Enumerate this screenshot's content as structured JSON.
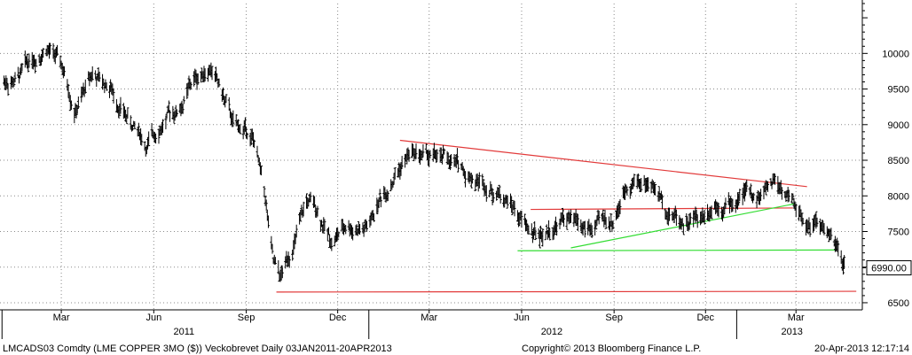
{
  "chart_data": {
    "type": "bar",
    "subtype": "ohlc",
    "ylim": [
      6400,
      10700
    ],
    "x_range": [
      "2011-01-03",
      "2013-04-20"
    ],
    "y_ticks": [
      6500,
      7000,
      7500,
      8000,
      8500,
      9000,
      9500,
      10000
    ],
    "y_tick_labels": [
      "6500",
      "7000",
      "7500",
      "8000",
      "8500",
      "9000",
      "9500",
      "10000"
    ],
    "x_month_ticks": [
      {
        "date": "2011-03-01",
        "label": "Mar"
      },
      {
        "date": "2011-06-01",
        "label": "Jun"
      },
      {
        "date": "2011-09-01",
        "label": "Sep"
      },
      {
        "date": "2011-12-01",
        "label": "Dec"
      },
      {
        "date": "2012-03-01",
        "label": "Mar"
      },
      {
        "date": "2012-06-01",
        "label": "Jun"
      },
      {
        "date": "2012-09-01",
        "label": "Sep"
      },
      {
        "date": "2012-12-01",
        "label": "Dec"
      },
      {
        "date": "2013-03-01",
        "label": "Mar"
      }
    ],
    "x_year_ticks": [
      {
        "date": "2011-01-01",
        "label": "2011",
        "center_date": "2011-07-01"
      },
      {
        "date": "2012-01-01",
        "label": "2012",
        "center_date": "2012-07-01"
      },
      {
        "date": "2013-01-01",
        "label": "2013",
        "center_date": "2013-02-25"
      }
    ],
    "last_price": 6990.0,
    "last_price_label": "6990.00",
    "grid": true,
    "price_keypoints": [
      [
        "2011-01-03",
        9600
      ],
      [
        "2011-01-20",
        9700
      ],
      [
        "2011-02-05",
        10000
      ],
      [
        "2011-02-14",
        10150
      ],
      [
        "2011-03-01",
        9800
      ],
      [
        "2011-03-15",
        9250
      ],
      [
        "2011-04-01",
        9700
      ],
      [
        "2011-04-20",
        9500
      ],
      [
        "2011-05-10",
        9000
      ],
      [
        "2011-05-25",
        8700
      ],
      [
        "2011-06-10",
        9050
      ],
      [
        "2011-06-25",
        9200
      ],
      [
        "2011-07-10",
        9600
      ],
      [
        "2011-07-28",
        9850
      ],
      [
        "2011-08-08",
        9400
      ],
      [
        "2011-08-20",
        8950
      ],
      [
        "2011-09-01",
        8900
      ],
      [
        "2011-09-10",
        8700
      ],
      [
        "2011-09-20",
        7900
      ],
      [
        "2011-09-28",
        7000
      ],
      [
        "2011-10-05",
        6800
      ],
      [
        "2011-10-20",
        7400
      ],
      [
        "2011-10-31",
        7900
      ],
      [
        "2011-11-10",
        7800
      ],
      [
        "2011-11-25",
        7350
      ],
      [
        "2011-12-10",
        7600
      ],
      [
        "2011-12-30",
        7550
      ],
      [
        "2012-01-10",
        7900
      ],
      [
        "2012-01-25",
        8300
      ],
      [
        "2012-02-10",
        8600
      ],
      [
        "2012-02-24",
        8550
      ],
      [
        "2012-03-10",
        8500
      ],
      [
        "2012-03-25",
        8450
      ],
      [
        "2012-04-10",
        8300
      ],
      [
        "2012-04-25",
        8200
      ],
      [
        "2012-05-05",
        8100
      ],
      [
        "2012-05-20",
        7950
      ],
      [
        "2012-06-01",
        7650
      ],
      [
        "2012-06-15",
        7400
      ],
      [
        "2012-06-30",
        7550
      ],
      [
        "2012-07-15",
        7700
      ],
      [
        "2012-07-31",
        7500
      ],
      [
        "2012-08-15",
        7550
      ],
      [
        "2012-08-31",
        7650
      ],
      [
        "2012-09-15",
        8250
      ],
      [
        "2012-09-28",
        8200
      ],
      [
        "2012-10-10",
        8150
      ],
      [
        "2012-10-25",
        7800
      ],
      [
        "2012-11-10",
        7650
      ],
      [
        "2012-11-25",
        7700
      ],
      [
        "2012-12-10",
        7950
      ],
      [
        "2012-12-28",
        7900
      ],
      [
        "2013-01-10",
        8050
      ],
      [
        "2013-01-25",
        8000
      ],
      [
        "2013-02-08",
        8250
      ],
      [
        "2013-02-20",
        8050
      ],
      [
        "2013-03-01",
        7800
      ],
      [
        "2013-03-10",
        7650
      ],
      [
        "2013-03-20",
        7600
      ],
      [
        "2013-04-02",
        7450
      ],
      [
        "2013-04-12",
        7150
      ],
      [
        "2013-04-18",
        6990
      ]
    ],
    "trend_lines": [
      {
        "color": "#e23a3a",
        "points": [
          [
            "2012-02-01",
            8780
          ],
          [
            "2013-03-12",
            8130
          ]
        ]
      },
      {
        "color": "#e23a3a",
        "points": [
          [
            "2012-06-10",
            7810
          ],
          [
            "2013-02-26",
            7830
          ]
        ]
      },
      {
        "color": "#e23a3a",
        "points": [
          [
            "2011-10-01",
            6650
          ],
          [
            "2013-04-30",
            6660
          ]
        ]
      },
      {
        "color": "#33dd33",
        "points": [
          [
            "2012-07-20",
            7270
          ],
          [
            "2013-02-28",
            7890
          ]
        ]
      },
      {
        "color": "#33dd33",
        "points": [
          [
            "2012-05-28",
            7230
          ],
          [
            "2013-04-10",
            7240
          ]
        ]
      }
    ]
  },
  "footer": {
    "ticker": "LMCADS03 Comdty (LME COPPER    3MO ($)) Veckobrevet  Daily 03JAN2011-20APR2013",
    "copyright": "Copyright© 2013 Bloomberg Finance L.P.",
    "timestamp": "20-Apr-2013 12:17:14"
  },
  "colors": {
    "price": "#000000",
    "grid": "#8a8a8a",
    "axis": "#000000",
    "red_line": "#e23a3a",
    "green_line": "#33dd33"
  }
}
